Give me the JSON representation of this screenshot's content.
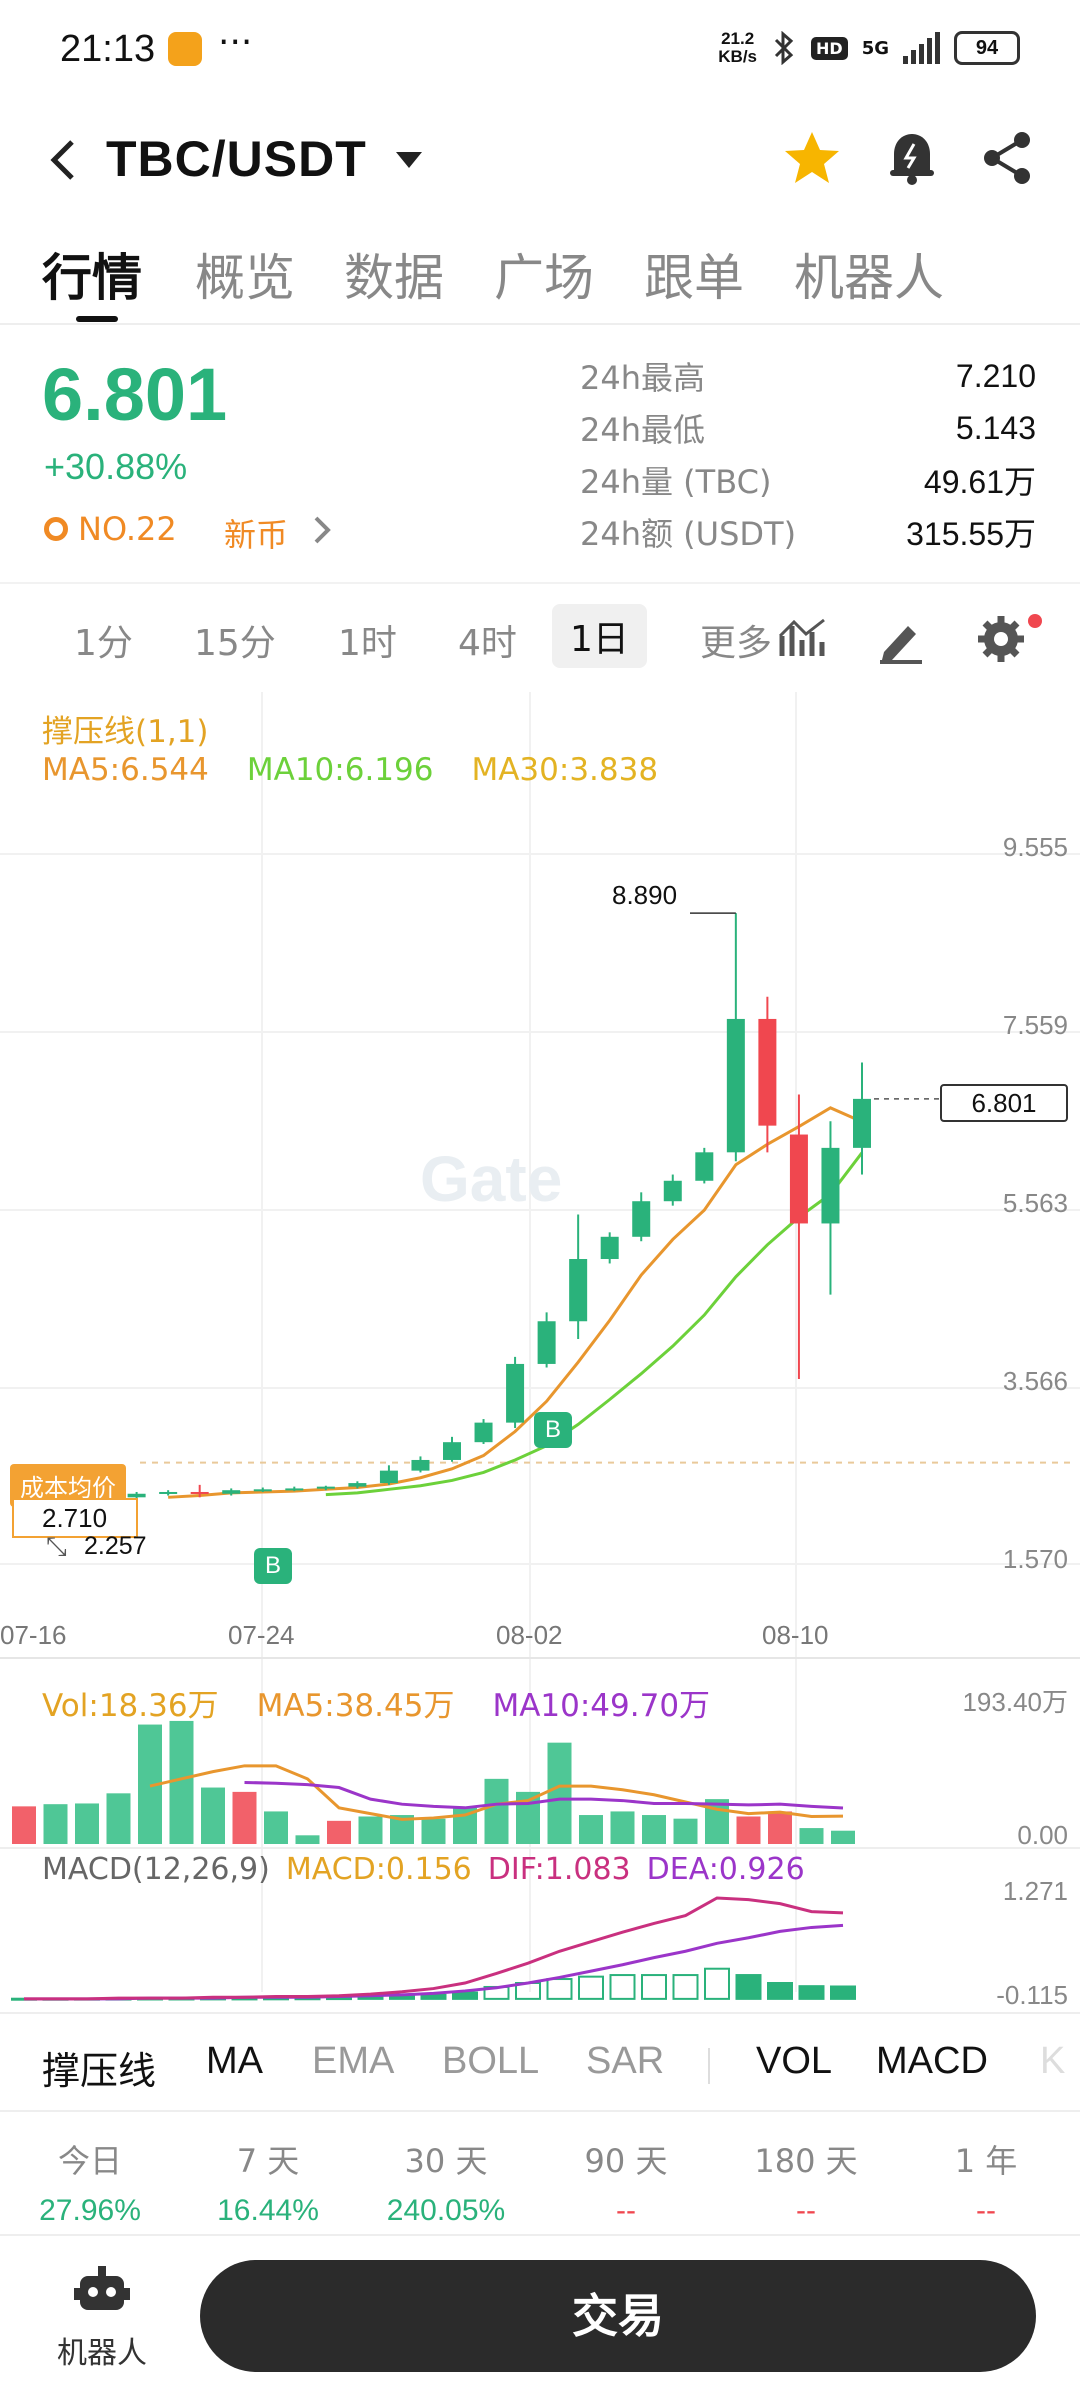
{
  "status_bar": {
    "time": "21:13",
    "dots": "···",
    "net_speed_value": "21.2",
    "net_speed_unit": "KB/s",
    "hd": "HD",
    "network": "5G",
    "battery": "94"
  },
  "header": {
    "pair": "TBC/USDT",
    "star_icon": "star-icon",
    "bell_icon": "alert-bell-icon",
    "share_icon": "share-icon"
  },
  "tabs": [
    "行情",
    "概览",
    "数据",
    "广场",
    "跟单",
    "机器人"
  ],
  "price": {
    "last": "6.801",
    "change_pct": "+30.88%",
    "rank": "NO.22",
    "tag": "新币"
  },
  "stats": [
    {
      "label": "24h最高",
      "value": "7.210"
    },
    {
      "label": "24h最低",
      "value": "5.143"
    },
    {
      "label": "24h量 (TBC)",
      "value": "49.61万"
    },
    {
      "label": "24h额 (USDT)",
      "value": "315.55万"
    }
  ],
  "periods": [
    "1分",
    "15分",
    "1时",
    "4时",
    "1日",
    "更多"
  ],
  "chart": {
    "indicator_title": "撑压线(1,1)",
    "ma5": "MA5:6.544",
    "ma10": "MA10:6.196",
    "ma30": "MA30:3.838",
    "watermark": "Gate",
    "high_label": "8.890",
    "current_price": "6.801",
    "cost_label": "成本均价",
    "cost_value": "2.710",
    "low_value": "2.257",
    "buy_marker": "B",
    "vol": "Vol:18.36万",
    "vol_ma5": "MA5:38.45万",
    "vol_ma10": "MA10:49.70万",
    "vol_top": "193.40万",
    "vol_zero": "0.00",
    "macd_title": "MACD(12,26,9)",
    "macd": "MACD:0.156",
    "dif": "DIF:1.083",
    "dea": "DEA:0.926",
    "macd_top": "1.271",
    "macd_bottom": "-0.115",
    "colors": {
      "up": "#2ab27b",
      "down": "#f0474f",
      "ma5": "#e8962e",
      "ma10": "#6cd13a",
      "dif": "#c9307f",
      "dea": "#9b35c9"
    }
  },
  "chart_data": {
    "type": "candlestick",
    "y_ticks": [
      "9.555",
      "7.559",
      "5.563",
      "3.566",
      "1.570"
    ],
    "ylim": [
      1.57,
      9.555
    ],
    "x_ticks": [
      "07-16",
      "07-24",
      "08-02",
      "08-10"
    ],
    "candles": [
      {
        "o": 2.3,
        "h": 2.35,
        "l": 2.24,
        "c": 2.26
      },
      {
        "o": 2.26,
        "h": 2.3,
        "l": 2.24,
        "c": 2.28
      },
      {
        "o": 2.28,
        "h": 2.34,
        "l": 2.26,
        "c": 2.32
      },
      {
        "o": 2.32,
        "h": 2.38,
        "l": 2.3,
        "c": 2.36
      },
      {
        "o": 2.36,
        "h": 2.4,
        "l": 2.34,
        "c": 2.38
      },
      {
        "o": 2.38,
        "h": 2.46,
        "l": 2.32,
        "c": 2.36
      },
      {
        "o": 2.36,
        "h": 2.42,
        "l": 2.34,
        "c": 2.4
      },
      {
        "o": 2.4,
        "h": 2.43,
        "l": 2.38,
        "c": 2.41
      },
      {
        "o": 2.41,
        "h": 2.44,
        "l": 2.39,
        "c": 2.42
      },
      {
        "o": 2.42,
        "h": 2.45,
        "l": 2.4,
        "c": 2.44
      },
      {
        "o": 2.44,
        "h": 2.5,
        "l": 2.42,
        "c": 2.48
      },
      {
        "o": 2.48,
        "h": 2.68,
        "l": 2.46,
        "c": 2.62
      },
      {
        "o": 2.62,
        "h": 2.78,
        "l": 2.6,
        "c": 2.74
      },
      {
        "o": 2.74,
        "h": 3.0,
        "l": 2.72,
        "c": 2.94
      },
      {
        "o": 2.94,
        "h": 3.2,
        "l": 2.92,
        "c": 3.16
      },
      {
        "o": 3.16,
        "h": 3.9,
        "l": 3.1,
        "c": 3.82
      },
      {
        "o": 3.82,
        "h": 4.4,
        "l": 3.78,
        "c": 4.3
      },
      {
        "o": 4.3,
        "h": 5.5,
        "l": 4.1,
        "c": 5.0
      },
      {
        "o": 5.0,
        "h": 5.3,
        "l": 4.95,
        "c": 5.25
      },
      {
        "o": 5.25,
        "h": 5.75,
        "l": 5.2,
        "c": 5.65
      },
      {
        "o": 5.65,
        "h": 5.95,
        "l": 5.6,
        "c": 5.88
      },
      {
        "o": 5.88,
        "h": 6.25,
        "l": 5.85,
        "c": 6.2
      },
      {
        "o": 6.2,
        "h": 8.89,
        "l": 6.1,
        "c": 7.7
      },
      {
        "o": 7.7,
        "h": 7.95,
        "l": 6.2,
        "c": 6.5
      },
      {
        "o": 6.4,
        "h": 6.85,
        "l": 3.65,
        "c": 5.4
      },
      {
        "o": 5.4,
        "h": 6.55,
        "l": 4.6,
        "c": 6.25
      },
      {
        "o": 6.25,
        "h": 7.21,
        "l": 5.95,
        "c": 6.801
      }
    ],
    "ma5": [
      null,
      null,
      null,
      null,
      2.32,
      2.34,
      2.37,
      2.38,
      2.39,
      2.41,
      2.43,
      2.47,
      2.54,
      2.64,
      2.79,
      3.06,
      3.4,
      3.84,
      4.31,
      4.82,
      5.22,
      5.55,
      6.06,
      6.29,
      6.49,
      6.7,
      6.544
    ],
    "ma10": [
      null,
      null,
      null,
      null,
      null,
      null,
      null,
      null,
      null,
      2.35,
      2.37,
      2.41,
      2.45,
      2.51,
      2.6,
      2.74,
      2.9,
      3.14,
      3.42,
      3.71,
      4.02,
      4.37,
      4.8,
      5.16,
      5.47,
      5.73,
      6.196
    ],
    "volumes": [
      {
        "v": 52,
        "up": false
      },
      {
        "v": 55,
        "up": true
      },
      {
        "v": 56,
        "up": true
      },
      {
        "v": 70,
        "up": true
      },
      {
        "v": 165,
        "up": true
      },
      {
        "v": 170,
        "up": true
      },
      {
        "v": 78,
        "up": true
      },
      {
        "v": 72,
        "up": false
      },
      {
        "v": 45,
        "up": true
      },
      {
        "v": 12,
        "up": true
      },
      {
        "v": 32,
        "up": false
      },
      {
        "v": 38,
        "up": true
      },
      {
        "v": 40,
        "up": true
      },
      {
        "v": 35,
        "up": true
      },
      {
        "v": 50,
        "up": true
      },
      {
        "v": 90,
        "up": true
      },
      {
        "v": 72,
        "up": true
      },
      {
        "v": 140,
        "up": true
      },
      {
        "v": 40,
        "up": true
      },
      {
        "v": 45,
        "up": true
      },
      {
        "v": 40,
        "up": true
      },
      {
        "v": 35,
        "up": true
      },
      {
        "v": 62,
        "up": true
      },
      {
        "v": 38,
        "up": false
      },
      {
        "v": 45,
        "up": false
      },
      {
        "v": 22,
        "up": true
      },
      {
        "v": 18.36,
        "up": true
      }
    ],
    "vol_ma5": [
      null,
      null,
      null,
      null,
      80,
      90,
      100,
      108,
      108,
      90,
      50,
      42,
      34,
      36,
      40,
      55,
      60,
      80,
      80,
      75,
      68,
      58,
      48,
      42,
      44,
      38,
      38.45
    ],
    "vol_ma10": [
      null,
      null,
      null,
      null,
      null,
      null,
      null,
      85,
      84,
      82,
      78,
      62,
      55,
      52,
      50,
      55,
      56,
      62,
      62,
      60,
      56,
      56,
      55,
      54,
      55,
      52,
      49.7
    ],
    "macd_hist": [
      0.002,
      0.002,
      0.003,
      0.004,
      0.005,
      0.005,
      0.006,
      0.006,
      0.007,
      0.008,
      0.01,
      0.02,
      0.03,
      0.05,
      0.08,
      0.15,
      0.2,
      0.25,
      0.28,
      0.3,
      0.3,
      0.3,
      0.38,
      0.3,
      0.2,
      0.16,
      0.156
    ],
    "dif": [
      0.0,
      0.0,
      0.0,
      0.01,
      0.01,
      0.01,
      0.02,
      0.02,
      0.03,
      0.03,
      0.04,
      0.06,
      0.09,
      0.13,
      0.2,
      0.32,
      0.45,
      0.6,
      0.72,
      0.84,
      0.95,
      1.05,
      1.271,
      1.25,
      1.2,
      1.1,
      1.083
    ],
    "dea": [
      0.0,
      0.0,
      0.0,
      0.0,
      0.01,
      0.01,
      0.01,
      0.02,
      0.02,
      0.02,
      0.03,
      0.04,
      0.05,
      0.07,
      0.1,
      0.14,
      0.2,
      0.27,
      0.35,
      0.43,
      0.52,
      0.6,
      0.7,
      0.77,
      0.85,
      0.9,
      0.926
    ],
    "macd_ylim": [
      -0.115,
      1.271
    ]
  },
  "indicators": [
    {
      "label": "撑压线",
      "on": true
    },
    {
      "label": "MA",
      "on": true
    },
    {
      "label": "EMA",
      "on": false
    },
    {
      "label": "BOLL",
      "on": false
    },
    {
      "label": "SAR",
      "on": false
    },
    {
      "label": "VOL",
      "on": true
    },
    {
      "label": "MACD",
      "on": true
    },
    {
      "label": "K",
      "on": false
    }
  ],
  "returns": [
    {
      "label": "今日",
      "value": "27.96%"
    },
    {
      "label": "7 天",
      "value": "16.44%"
    },
    {
      "label": "30 天",
      "value": "240.05%"
    },
    {
      "label": "90 天",
      "value": "--"
    },
    {
      "label": "180 天",
      "value": "--"
    },
    {
      "label": "1 年",
      "value": "--"
    }
  ],
  "bottom": {
    "robot_label": "机器人",
    "trade_label": "交易"
  }
}
